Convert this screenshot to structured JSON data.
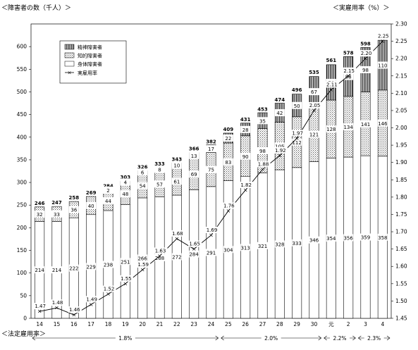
{
  "chart_data": {
    "type": "bar",
    "stacked": true,
    "left_axis_title": "＜障害者の数（千人）＞",
    "right_axis_title": "＜実雇用率（%）＞",
    "ylim_left": [
      0,
      650
    ],
    "ylim_right": [
      1.45,
      2.3
    ],
    "left_ticks": [
      "0",
      "50",
      "100",
      "150",
      "200",
      "250",
      "300",
      "350",
      "400",
      "450",
      "500",
      "550",
      "600"
    ],
    "right_ticks": [
      "1.45",
      "1.50",
      "1.55",
      "1.60",
      "1.65",
      "1.70",
      "1.75",
      "1.80",
      "1.85",
      "1.90",
      "1.95",
      "2.00",
      "2.05",
      "2.10",
      "2.15",
      "2.20",
      "2.25",
      "2.30"
    ],
    "categories": [
      "14",
      "15",
      "16",
      "17",
      "18",
      "19",
      "20",
      "21",
      "22",
      "23",
      "24",
      "25",
      "26",
      "27",
      "28",
      "29",
      "30",
      "元",
      "2",
      "3",
      "4"
    ],
    "series": [
      {
        "name": "身体障害者",
        "values": [
          214,
          214,
          222,
          229,
          238,
          251,
          266,
          268,
          272,
          284,
          291,
          304,
          313,
          321,
          328,
          333,
          346,
          354,
          356,
          359,
          358
        ]
      },
      {
        "name": "知的障害者",
        "values": [
          32,
          33,
          36,
          40,
          44,
          48,
          54,
          57,
          61,
          69,
          75,
          83,
          90,
          98,
          105,
          112,
          121,
          128,
          134,
          141,
          146
        ]
      },
      {
        "name": "精神障害者",
        "values": [
          0,
          0,
          0,
          0,
          2,
          4,
          6,
          8,
          10,
          13,
          17,
          22,
          28,
          35,
          42,
          50,
          67,
          78,
          88,
          98,
          110
        ]
      }
    ],
    "totals": [
      246,
      247,
      258,
      269,
      284,
      303,
      326,
      333,
      343,
      366,
      382,
      409,
      431,
      453,
      474,
      496,
      535,
      561,
      578,
      598,
      614
    ],
    "line": {
      "name": "実雇用率",
      "values": [
        1.47,
        1.48,
        1.46,
        1.49,
        1.52,
        1.55,
        1.59,
        1.63,
        1.68,
        1.65,
        1.69,
        1.76,
        1.82,
        1.88,
        1.92,
        1.97,
        2.05,
        2.11,
        2.15,
        2.2,
        2.25
      ]
    },
    "legend": [
      "精神障害者",
      "知的障害者",
      "身体障害者",
      "実雇用率"
    ],
    "legend_position": "top-left",
    "legal_rate_label": "＜法定雇用率＞",
    "legal_rates": [
      {
        "label": "1.8%",
        "from": "14",
        "to": "24"
      },
      {
        "label": "2.0%",
        "from": "25",
        "to": "30"
      },
      {
        "label": "2.2%",
        "from": "元",
        "to": "2"
      },
      {
        "label": "2.3%",
        "from": "3",
        "to": "4"
      }
    ]
  }
}
